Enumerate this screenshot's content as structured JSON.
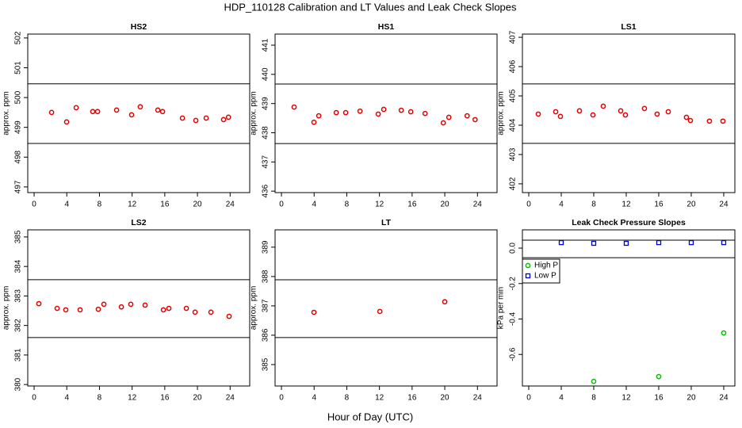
{
  "title": "HDP_110128  Calibration and LT Values and Leak Check Slopes",
  "xlabel": "Hour of Day (UTC)",
  "chart_data": [
    {
      "type": "scatter",
      "title": "HS2",
      "ylabel": "approx. ppm",
      "xlim": [
        -0.78,
        26.4
      ],
      "xticks": [
        0,
        4,
        8,
        12,
        16,
        20,
        24
      ],
      "ylim": [
        496.81,
        502.13
      ],
      "yticks": [
        497,
        498,
        499,
        500,
        501,
        502
      ],
      "hlines": [
        500.46,
        498.46
      ],
      "series": [
        {
          "color": "#e00000",
          "marker": "circle",
          "x": [
            2.14,
            3.98,
            5.15,
            7.18,
            7.77,
            10.1,
            11.94,
            13.0,
            15.15,
            15.73,
            18.16,
            19.8,
            21.07,
            23.2,
            23.8
          ],
          "values": [
            499.5,
            499.18,
            499.66,
            499.53,
            499.53,
            499.58,
            499.42,
            499.69,
            499.58,
            499.53,
            499.31,
            499.23,
            499.31,
            499.26,
            499.34
          ]
        }
      ]
    },
    {
      "type": "scatter",
      "title": "HS1",
      "ylabel": "approx. ppm",
      "xlim": [
        -0.78,
        26.4
      ],
      "xticks": [
        0,
        4,
        8,
        12,
        16,
        20,
        24
      ],
      "ylim": [
        435.95,
        441.38
      ],
      "yticks": [
        436,
        437,
        438,
        439,
        440,
        441
      ],
      "hlines": [
        439.67,
        437.63
      ],
      "series": [
        {
          "color": "#e00000",
          "marker": "circle",
          "x": [
            1.55,
            3.98,
            4.57,
            6.71,
            7.87,
            9.62,
            11.85,
            12.53,
            14.67,
            15.84,
            17.59,
            19.82,
            20.5,
            22.74,
            23.71
          ],
          "values": [
            438.88,
            438.36,
            438.58,
            438.69,
            438.69,
            438.74,
            438.64,
            438.8,
            438.77,
            438.72,
            438.66,
            438.34,
            438.53,
            438.58,
            438.45
          ]
        }
      ]
    },
    {
      "type": "scatter",
      "title": "LS1",
      "ylabel": "approx. ppm",
      "xlim": [
        -0.78,
        25.37
      ],
      "xticks": [
        0,
        4,
        8,
        12,
        16,
        20,
        24
      ],
      "ylim": [
        401.7,
        407.11
      ],
      "yticks": [
        402,
        403,
        404,
        405,
        406,
        407
      ],
      "hlines": [
        405.41,
        403.38
      ],
      "series": [
        {
          "color": "#e00000",
          "marker": "circle",
          "x": [
            1.17,
            3.32,
            3.9,
            6.24,
            7.9,
            9.17,
            11.32,
            11.9,
            14.24,
            15.8,
            17.17,
            19.41,
            19.9,
            22.24,
            23.9
          ],
          "values": [
            404.38,
            404.46,
            404.3,
            404.49,
            404.35,
            404.65,
            404.49,
            404.35,
            404.57,
            404.38,
            404.46,
            404.27,
            404.16,
            404.14,
            404.14
          ]
        }
      ]
    },
    {
      "type": "scatter",
      "title": "LS2",
      "ylabel": "approx. ppm",
      "xlim": [
        -0.78,
        26.4
      ],
      "xticks": [
        0,
        4,
        8,
        12,
        16,
        20,
        24
      ],
      "ylim": [
        379.95,
        385.24
      ],
      "yticks": [
        380,
        381,
        382,
        383,
        384,
        385
      ],
      "hlines": [
        383.55,
        381.59
      ],
      "series": [
        {
          "color": "#e00000",
          "marker": "circle",
          "x": [
            0.58,
            2.82,
            3.88,
            5.63,
            7.86,
            8.54,
            10.68,
            11.84,
            13.59,
            15.83,
            16.5,
            18.64,
            19.71,
            21.65,
            23.88
          ],
          "values": [
            382.74,
            382.58,
            382.53,
            382.53,
            382.55,
            382.72,
            382.63,
            382.72,
            382.69,
            382.53,
            382.58,
            382.58,
            382.45,
            382.45,
            382.31
          ]
        }
      ]
    },
    {
      "type": "scatter",
      "title": "LT",
      "ylabel": "approx. ppm",
      "xlim": [
        -0.78,
        26.4
      ],
      "xticks": [
        0,
        4,
        8,
        12,
        16,
        20,
        24
      ],
      "ylim": [
        384.27,
        389.59
      ],
      "yticks": [
        385,
        386,
        387,
        388,
        389
      ],
      "hlines": [
        387.89,
        385.92
      ],
      "series": [
        {
          "color": "#e00000",
          "marker": "circle",
          "x": [
            3.98,
            12.05,
            20.0
          ],
          "values": [
            386.78,
            386.81,
            387.14
          ]
        }
      ]
    },
    {
      "type": "scatter",
      "title": "Leak Check Pressure Slopes",
      "ylabel": "kPa per min",
      "xlim": [
        -0.78,
        25.37
      ],
      "xticks": [
        0,
        4,
        8,
        12,
        16,
        20,
        24
      ],
      "ylim": [
        -0.778,
        0.103
      ],
      "yticks": [
        -0.6,
        -0.4,
        -0.2,
        {
          "value": 0,
          "label": "0.0"
        }
      ],
      "hlines": [
        0.045,
        -0.054
      ],
      "legend": "topleft",
      "series": [
        {
          "name": "High P",
          "color": "#00c000",
          "marker": "circle",
          "x": [
            8,
            16,
            24
          ],
          "values": [
            -0.752,
            -0.725,
            -0.479
          ]
        },
        {
          "name": "Low P",
          "color": "#0000d0",
          "marker": "square",
          "x": [
            4,
            8,
            12,
            16,
            20,
            24
          ],
          "values": [
            0.031,
            0.027,
            0.027,
            0.031,
            0.031,
            0.031
          ]
        }
      ]
    }
  ]
}
